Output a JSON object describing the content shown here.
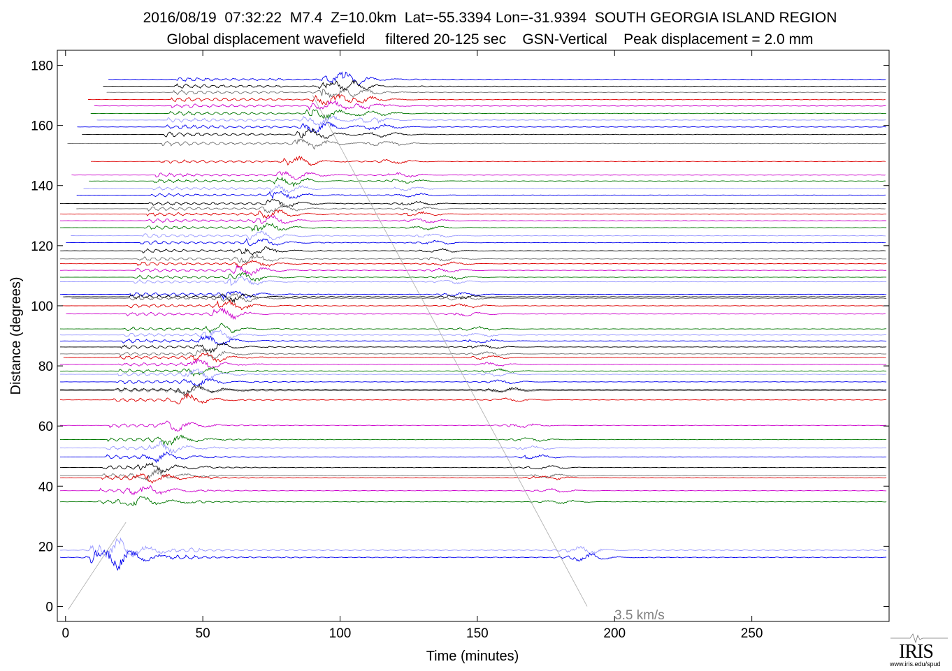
{
  "title_line1": "2016/08/19  07:32:22  M7.4  Z=10.0km  Lat=-55.3394 Lon=-31.9394  SOUTH GEORGIA ISLAND REGION",
  "title_line2": "Global displacement wavefield     filtered 20-125 sec    GSN-Vertical    Peak displacement = 2.0 mm",
  "logo": {
    "text": "IRIS",
    "url": "www.iris.edu/spud"
  },
  "chart_data": {
    "type": "line",
    "title": "2016/08/19  07:32:22  M7.4  Z=10.0km  Lat=-55.3394 Lon=-31.9394  SOUTH GEORGIA ISLAND REGION",
    "subtitle": "Global displacement wavefield     filtered 20-125 sec    GSN-Vertical    Peak displacement = 2.0 mm",
    "xlabel": "Time (minutes)",
    "ylabel": "Distance (degrees)",
    "xlim": [
      -3,
      300
    ],
    "ylim": [
      -5,
      185
    ],
    "xticks": [
      0,
      50,
      100,
      150,
      200,
      250
    ],
    "yticks": [
      0,
      20,
      40,
      60,
      80,
      100,
      120,
      140,
      160,
      180
    ],
    "grid": false,
    "trace_colors": [
      "#0000ee",
      "#000000",
      "#707070",
      "#dd0000",
      "#cc00cc",
      "#007700",
      "#9999ff"
    ],
    "trace_distances": [
      175.3,
      173,
      171,
      168.6,
      166.5,
      164,
      161.8,
      159.5,
      157,
      154,
      148,
      143.5,
      141.5,
      139,
      136.8,
      134,
      132.3,
      130.5,
      128.3,
      126,
      123.3,
      121,
      118.3,
      115.6,
      114,
      111.8,
      109.5,
      108,
      103.8,
      103,
      102.5,
      100,
      97.3,
      92.3,
      90.3,
      88.3,
      86.3,
      84,
      82.8,
      80.5,
      78.3,
      77.2,
      74.7,
      72.1,
      71.8,
      68.7,
      60.2,
      55.5,
      52.7,
      49.7,
      46.2,
      43.5,
      42.8,
      38.5,
      34.8,
      18.7,
      16.3
    ],
    "reference_line": {
      "label": "3.5 km/s",
      "points": [
        [
          0,
          0
        ],
        [
          190,
          0
        ]
      ]
    }
  }
}
